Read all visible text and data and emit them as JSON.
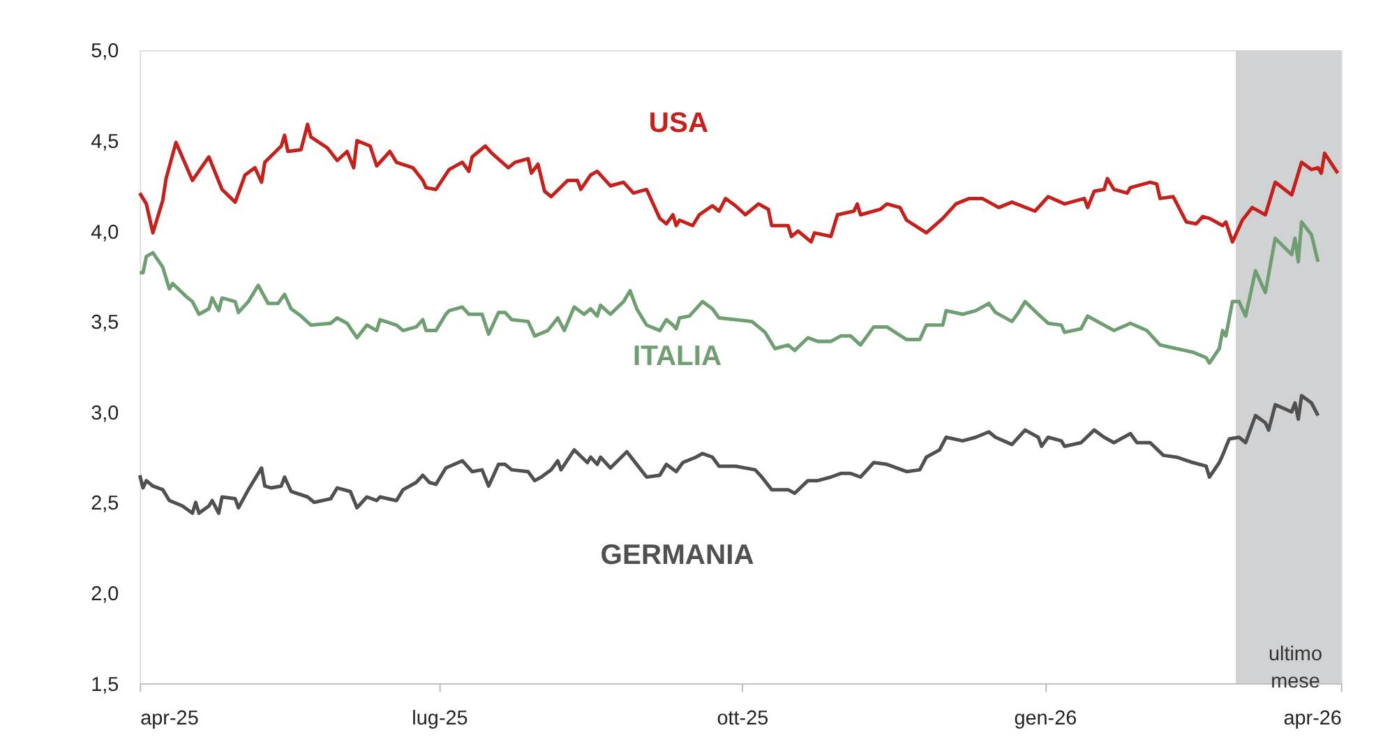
{
  "chart_data": {
    "type": "line",
    "grid": false,
    "marker": "none",
    "line_style": "solid",
    "xlim": [
      "2025-04-01",
      "2026-04-01"
    ],
    "xticks": [
      {
        "value": "2025-04-01",
        "label": "apr-25"
      },
      {
        "value": "2025-07-01",
        "label": "lug-25"
      },
      {
        "value": "2025-10-01",
        "label": "ott-25"
      },
      {
        "value": "2026-01-01",
        "label": "gen-26"
      },
      {
        "value": "2026-04-01",
        "label": "apr-26"
      }
    ],
    "ylim": [
      1.5,
      5.0
    ],
    "yticks": [
      {
        "value": 1.5,
        "label": "1,5"
      },
      {
        "value": 2.0,
        "label": "2,0"
      },
      {
        "value": 2.5,
        "label": "2,5"
      },
      {
        "value": 3.0,
        "label": "3,0"
      },
      {
        "value": 3.5,
        "label": "3,5"
      },
      {
        "value": 4.0,
        "label": "4,0"
      },
      {
        "value": 4.5,
        "label": "4,5"
      },
      {
        "value": 5.0,
        "label": "5,0"
      }
    ],
    "bands": [
      {
        "axis": "x",
        "from": "2026-02-28",
        "to": "2026-04-01",
        "label": "ultimo mese",
        "color": "#d1d2d4"
      }
    ],
    "series": [
      {
        "name": "USA",
        "color": "#c4201c",
        "x": [
          "2025-04-01",
          "2025-04-03",
          "2025-04-05",
          "2025-04-08",
          "2025-04-09",
          "2025-04-12",
          "2025-04-17",
          "2025-04-22",
          "2025-04-26",
          "2025-04-30",
          "2025-05-03",
          "2025-05-06",
          "2025-05-08",
          "2025-05-09",
          "2025-05-14",
          "2025-05-15",
          "2025-05-16",
          "2025-05-20",
          "2025-05-22",
          "2025-05-23",
          "2025-05-28",
          "2025-05-31",
          "2025-06-03",
          "2025-06-05",
          "2025-06-06",
          "2025-06-10",
          "2025-06-12",
          "2025-06-16",
          "2025-06-18",
          "2025-06-23",
          "2025-06-26",
          "2025-06-27",
          "2025-06-30",
          "2025-07-04",
          "2025-07-08",
          "2025-07-10",
          "2025-07-11",
          "2025-07-15",
          "2025-07-17",
          "2025-07-22",
          "2025-07-24",
          "2025-07-28",
          "2025-07-29",
          "2025-07-31",
          "2025-08-02",
          "2025-08-04",
          "2025-08-09",
          "2025-08-12",
          "2025-08-13",
          "2025-08-16",
          "2025-08-18",
          "2025-08-20",
          "2025-08-22",
          "2025-08-26",
          "2025-08-29",
          "2025-09-02",
          "2025-09-06",
          "2025-09-08",
          "2025-09-10",
          "2025-09-11",
          "2025-09-12",
          "2025-09-16",
          "2025-09-18",
          "2025-09-22",
          "2025-09-24",
          "2025-09-26",
          "2025-09-29",
          "2025-10-02",
          "2025-10-06",
          "2025-10-09",
          "2025-10-10",
          "2025-10-15",
          "2025-10-16",
          "2025-10-18",
          "2025-10-22",
          "2025-10-23",
          "2025-10-28",
          "2025-10-30",
          "2025-11-04",
          "2025-11-05",
          "2025-11-06",
          "2025-11-12",
          "2025-11-14",
          "2025-11-18",
          "2025-11-20",
          "2025-11-26",
          "2025-12-01",
          "2025-12-05",
          "2025-12-09",
          "2025-12-13",
          "2025-12-18",
          "2025-12-22",
          "2025-12-29",
          "2026-01-02",
          "2026-01-07",
          "2026-01-13",
          "2026-01-14",
          "2026-01-16",
          "2026-01-19",
          "2026-01-20",
          "2026-01-22",
          "2026-01-26",
          "2026-01-27",
          "2026-02-02",
          "2026-02-04",
          "2026-02-05",
          "2026-02-09",
          "2026-02-13",
          "2026-02-16",
          "2026-02-18",
          "2026-02-20",
          "2026-02-24",
          "2026-02-25",
          "2026-02-27",
          "2026-03-02",
          "2026-03-05",
          "2026-03-09",
          "2026-03-12",
          "2026-03-17",
          "2026-03-20",
          "2026-03-23",
          "2026-03-25",
          "2026-03-26",
          "2026-03-27",
          "2026-03-31"
        ],
        "values": [
          4.21,
          4.15,
          3.99,
          4.17,
          4.29,
          4.49,
          4.28,
          4.41,
          4.23,
          4.16,
          4.31,
          4.35,
          4.27,
          4.38,
          4.47,
          4.53,
          4.44,
          4.45,
          4.59,
          4.52,
          4.46,
          4.39,
          4.44,
          4.35,
          4.5,
          4.47,
          4.36,
          4.44,
          4.38,
          4.35,
          4.28,
          4.24,
          4.23,
          4.34,
          4.38,
          4.33,
          4.41,
          4.47,
          4.43,
          4.35,
          4.38,
          4.4,
          4.32,
          4.37,
          4.22,
          4.19,
          4.28,
          4.28,
          4.23,
          4.31,
          4.33,
          4.29,
          4.25,
          4.27,
          4.21,
          4.23,
          4.07,
          4.04,
          4.09,
          4.03,
          4.06,
          4.03,
          4.09,
          4.14,
          4.11,
          4.18,
          4.14,
          4.09,
          4.15,
          4.12,
          4.03,
          4.03,
          3.97,
          4.0,
          3.94,
          3.99,
          3.97,
          4.09,
          4.11,
          4.15,
          4.09,
          4.12,
          4.15,
          4.13,
          4.06,
          3.99,
          4.07,
          4.15,
          4.18,
          4.18,
          4.13,
          4.16,
          4.11,
          4.19,
          4.15,
          4.18,
          4.13,
          4.22,
          4.23,
          4.29,
          4.23,
          4.21,
          4.24,
          4.27,
          4.26,
          4.18,
          4.19,
          4.05,
          4.04,
          4.08,
          4.07,
          4.03,
          4.05,
          3.94,
          4.06,
          4.13,
          4.09,
          4.27,
          4.2,
          4.38,
          4.34,
          4.35,
          4.32,
          4.43,
          4.32
        ]
      },
      {
        "name": "ITALIA",
        "color": "#6e9e71",
        "x": [
          "2025-04-01",
          "2025-04-02",
          "2025-04-03",
          "2025-04-05",
          "2025-04-08",
          "2025-04-10",
          "2025-04-11",
          "2025-04-15",
          "2025-04-17",
          "2025-04-19",
          "2025-04-22",
          "2025-04-23",
          "2025-04-25",
          "2025-04-26",
          "2025-04-30",
          "2025-05-01",
          "2025-05-04",
          "2025-05-07",
          "2025-05-10",
          "2025-05-13",
          "2025-05-15",
          "2025-05-17",
          "2025-05-20",
          "2025-05-23",
          "2025-05-29",
          "2025-05-31",
          "2025-06-03",
          "2025-06-06",
          "2025-06-09",
          "2025-06-12",
          "2025-06-13",
          "2025-06-18",
          "2025-06-20",
          "2025-06-24",
          "2025-06-26",
          "2025-06-27",
          "2025-06-30",
          "2025-07-03",
          "2025-07-04",
          "2025-07-08",
          "2025-07-10",
          "2025-07-14",
          "2025-07-16",
          "2025-07-19",
          "2025-07-21",
          "2025-07-23",
          "2025-07-28",
          "2025-07-30",
          "2025-08-03",
          "2025-08-06",
          "2025-08-08",
          "2025-08-11",
          "2025-08-14",
          "2025-08-16",
          "2025-08-18",
          "2025-08-19",
          "2025-08-22",
          "2025-08-26",
          "2025-08-28",
          "2025-08-30",
          "2025-09-02",
          "2025-09-06",
          "2025-09-08",
          "2025-09-10",
          "2025-09-11",
          "2025-09-12",
          "2025-09-15",
          "2025-09-19",
          "2025-09-22",
          "2025-09-24",
          "2025-09-29",
          "2025-10-04",
          "2025-10-08",
          "2025-10-11",
          "2025-10-15",
          "2025-10-17",
          "2025-10-21",
          "2025-10-24",
          "2025-10-28",
          "2025-10-31",
          "2025-11-03",
          "2025-11-06",
          "2025-11-10",
          "2025-11-14",
          "2025-11-20",
          "2025-11-24",
          "2025-11-26",
          "2025-12-01",
          "2025-12-02",
          "2025-12-07",
          "2025-12-11",
          "2025-12-15",
          "2025-12-17",
          "2025-12-22",
          "2025-12-24",
          "2025-12-26",
          "2025-12-30",
          "2026-01-02",
          "2026-01-06",
          "2026-01-07",
          "2026-01-12",
          "2026-01-14",
          "2026-01-18",
          "2026-01-22",
          "2026-01-27",
          "2026-02-01",
          "2026-02-05",
          "2026-02-10",
          "2026-02-15",
          "2026-02-19",
          "2026-02-20",
          "2026-02-23",
          "2026-02-24",
          "2026-02-25",
          "2026-02-27",
          "2026-03-01",
          "2026-03-03",
          "2026-03-06",
          "2026-03-09",
          "2026-03-12",
          "2026-03-17",
          "2026-03-18",
          "2026-03-19",
          "2026-03-20",
          "2026-03-23",
          "2026-03-25"
        ],
        "values": [
          3.77,
          3.77,
          3.86,
          3.88,
          3.8,
          3.68,
          3.71,
          3.64,
          3.61,
          3.54,
          3.57,
          3.63,
          3.56,
          3.63,
          3.61,
          3.55,
          3.61,
          3.7,
          3.6,
          3.6,
          3.65,
          3.57,
          3.53,
          3.48,
          3.49,
          3.52,
          3.49,
          3.41,
          3.48,
          3.45,
          3.51,
          3.48,
          3.45,
          3.47,
          3.51,
          3.45,
          3.45,
          3.54,
          3.56,
          3.58,
          3.54,
          3.54,
          3.43,
          3.55,
          3.55,
          3.51,
          3.5,
          3.42,
          3.45,
          3.52,
          3.45,
          3.58,
          3.54,
          3.57,
          3.53,
          3.59,
          3.54,
          3.61,
          3.67,
          3.57,
          3.48,
          3.45,
          3.51,
          3.48,
          3.46,
          3.52,
          3.53,
          3.61,
          3.57,
          3.52,
          3.51,
          3.5,
          3.44,
          3.35,
          3.37,
          3.34,
          3.41,
          3.39,
          3.39,
          3.42,
          3.42,
          3.37,
          3.47,
          3.47,
          3.4,
          3.4,
          3.48,
          3.48,
          3.56,
          3.54,
          3.56,
          3.6,
          3.55,
          3.5,
          3.55,
          3.61,
          3.54,
          3.49,
          3.48,
          3.44,
          3.46,
          3.53,
          3.49,
          3.45,
          3.49,
          3.45,
          3.37,
          3.35,
          3.33,
          3.3,
          3.27,
          3.35,
          3.45,
          3.42,
          3.61,
          3.61,
          3.53,
          3.78,
          3.66,
          3.96,
          3.87,
          3.96,
          3.83,
          4.05,
          3.98,
          3.83
        ]
      },
      {
        "name": "GERMANIA",
        "color": "#505050",
        "x": [
          "2025-04-01",
          "2025-04-02",
          "2025-04-03",
          "2025-04-05",
          "2025-04-08",
          "2025-04-10",
          "2025-04-14",
          "2025-04-17",
          "2025-04-18",
          "2025-04-19",
          "2025-04-22",
          "2025-04-23",
          "2025-04-25",
          "2025-04-26",
          "2025-04-30",
          "2025-05-01",
          "2025-05-04",
          "2025-05-08",
          "2025-05-09",
          "2025-05-11",
          "2025-05-14",
          "2025-05-15",
          "2025-05-17",
          "2025-05-22",
          "2025-05-24",
          "2025-05-29",
          "2025-05-31",
          "2025-06-04",
          "2025-06-06",
          "2025-06-09",
          "2025-06-12",
          "2025-06-13",
          "2025-06-18",
          "2025-06-20",
          "2025-06-24",
          "2025-06-26",
          "2025-06-28",
          "2025-06-30",
          "2025-07-03",
          "2025-07-08",
          "2025-07-11",
          "2025-07-14",
          "2025-07-16",
          "2025-07-19",
          "2025-07-21",
          "2025-07-23",
          "2025-07-28",
          "2025-07-30",
          "2025-08-01",
          "2025-08-04",
          "2025-08-06",
          "2025-08-07",
          "2025-08-11",
          "2025-08-15",
          "2025-08-16",
          "2025-08-18",
          "2025-08-19",
          "2025-08-22",
          "2025-08-27",
          "2025-08-30",
          "2025-09-02",
          "2025-09-06",
          "2025-09-08",
          "2025-09-11",
          "2025-09-13",
          "2025-09-17",
          "2025-09-19",
          "2025-09-22",
          "2025-09-24",
          "2025-09-29",
          "2025-10-05",
          "2025-10-07",
          "2025-10-10",
          "2025-10-15",
          "2025-10-17",
          "2025-10-21",
          "2025-10-24",
          "2025-10-28",
          "2025-10-31",
          "2025-11-03",
          "2025-11-06",
          "2025-11-10",
          "2025-11-14",
          "2025-11-20",
          "2025-11-24",
          "2025-11-26",
          "2025-11-30",
          "2025-12-02",
          "2025-12-07",
          "2025-12-11",
          "2025-12-15",
          "2025-12-17",
          "2025-12-22",
          "2025-12-24",
          "2025-12-26",
          "2025-12-30",
          "2025-12-31",
          "2026-01-02",
          "2026-01-06",
          "2026-01-07",
          "2026-01-12",
          "2026-01-16",
          "2026-01-19",
          "2026-01-22",
          "2026-01-27",
          "2026-01-29",
          "2026-02-02",
          "2026-02-06",
          "2026-02-10",
          "2026-02-15",
          "2026-02-19",
          "2026-02-20",
          "2026-02-23",
          "2026-02-24",
          "2026-02-26",
          "2026-03-01",
          "2026-03-03",
          "2026-03-06",
          "2026-03-09",
          "2026-03-10",
          "2026-03-12",
          "2026-03-17",
          "2026-03-18",
          "2026-03-19",
          "2026-03-20",
          "2026-03-23",
          "2026-03-25"
        ],
        "values": [
          2.65,
          2.58,
          2.62,
          2.59,
          2.57,
          2.51,
          2.48,
          2.44,
          2.5,
          2.44,
          2.48,
          2.51,
          2.44,
          2.53,
          2.52,
          2.47,
          2.57,
          2.69,
          2.59,
          2.58,
          2.59,
          2.64,
          2.56,
          2.53,
          2.5,
          2.52,
          2.58,
          2.56,
          2.47,
          2.53,
          2.51,
          2.53,
          2.51,
          2.57,
          2.61,
          2.65,
          2.61,
          2.6,
          2.69,
          2.73,
          2.67,
          2.68,
          2.59,
          2.71,
          2.71,
          2.68,
          2.67,
          2.62,
          2.64,
          2.68,
          2.73,
          2.68,
          2.79,
          2.72,
          2.75,
          2.71,
          2.75,
          2.69,
          2.78,
          2.71,
          2.64,
          2.65,
          2.71,
          2.67,
          2.72,
          2.75,
          2.77,
          2.75,
          2.7,
          2.7,
          2.68,
          2.64,
          2.57,
          2.57,
          2.55,
          2.62,
          2.62,
          2.64,
          2.66,
          2.66,
          2.64,
          2.72,
          2.71,
          2.67,
          2.68,
          2.75,
          2.79,
          2.86,
          2.84,
          2.86,
          2.89,
          2.86,
          2.82,
          2.86,
          2.9,
          2.86,
          2.81,
          2.86,
          2.84,
          2.81,
          2.83,
          2.9,
          2.86,
          2.83,
          2.88,
          2.83,
          2.83,
          2.76,
          2.75,
          2.72,
          2.7,
          2.64,
          2.72,
          2.76,
          2.85,
          2.86,
          2.83,
          2.98,
          2.94,
          2.9,
          3.04,
          3.0,
          3.05,
          2.96,
          3.09,
          3.05,
          2.98
        ]
      }
    ]
  }
}
